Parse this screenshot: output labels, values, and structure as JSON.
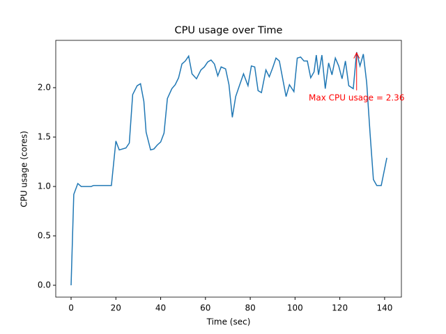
{
  "chart_data": {
    "type": "line",
    "title": "CPU usage over Time",
    "xlabel": "Time (sec)",
    "ylabel": "CPU usage (cores)",
    "x": [
      0,
      1.2,
      3,
      4.5,
      6,
      9,
      10,
      12,
      15,
      18,
      20,
      21.5,
      24.5,
      26,
      27.5,
      29.5,
      31,
      32.5,
      33.5,
      35.5,
      37,
      38.5,
      40,
      41.5,
      43,
      45,
      46.5,
      48,
      49.5,
      51,
      52.5,
      54,
      56,
      58,
      59.5,
      61,
      62.5,
      64,
      65.5,
      67,
      69,
      70.5,
      72,
      73.5,
      75,
      77,
      79,
      80.5,
      82,
      83.5,
      85,
      87,
      88.5,
      90,
      91.5,
      93,
      94.5,
      96,
      97.5,
      99.5,
      101,
      102.5,
      104,
      105.5,
      107,
      108.5,
      109.5,
      110.5,
      112,
      113.5,
      115,
      116.5,
      118,
      119.5,
      121,
      122.5,
      124,
      126,
      127.5,
      129,
      130.5,
      132,
      133.5,
      135,
      136.5,
      138.5,
      141
    ],
    "series": [
      {
        "color": "#1f77b4",
        "values": [
          0,
          0.92,
          1.03,
          1.0,
          1.0,
          1.0,
          1.01,
          1.01,
          1.01,
          1.01,
          1.46,
          1.37,
          1.39,
          1.44,
          1.93,
          2.02,
          2.04,
          1.86,
          1.55,
          1.37,
          1.38,
          1.42,
          1.45,
          1.54,
          1.89,
          1.99,
          2.03,
          2.1,
          2.24,
          2.27,
          2.32,
          2.14,
          2.09,
          2.18,
          2.21,
          2.26,
          2.28,
          2.24,
          2.12,
          2.21,
          2.19,
          2.03,
          1.7,
          1.91,
          2.01,
          2.14,
          2.02,
          2.22,
          2.21,
          1.97,
          1.95,
          2.18,
          2.11,
          2.2,
          2.3,
          2.27,
          2.09,
          1.91,
          2.03,
          1.96,
          2.3,
          2.31,
          2.27,
          2.27,
          2.1,
          2.16,
          2.33,
          2.13,
          2.33,
          1.99,
          2.25,
          2.13,
          2.3,
          2.22,
          2.09,
          2.27,
          2.02,
          1.99,
          2.36,
          2.22,
          2.34,
          2.05,
          1.54,
          1.07,
          1.01,
          1.01,
          1.29
        ]
      }
    ],
    "annotation": {
      "text": "Max CPU usage = 2.36",
      "color": "red"
    },
    "xlim": [
      -6.85,
      147.5
    ],
    "ylim": [
      -0.12,
      2.479
    ],
    "xticks": [
      0,
      20,
      40,
      60,
      80,
      100,
      120,
      140
    ],
    "yticks": [
      {
        "value": 0,
        "label": "0.0"
      },
      {
        "value": 0.5,
        "label": "0.5"
      },
      {
        "value": 1,
        "label": "1.0"
      },
      {
        "value": 1.5,
        "label": "1.5"
      },
      {
        "value": 2,
        "label": "2.0"
      }
    ]
  }
}
